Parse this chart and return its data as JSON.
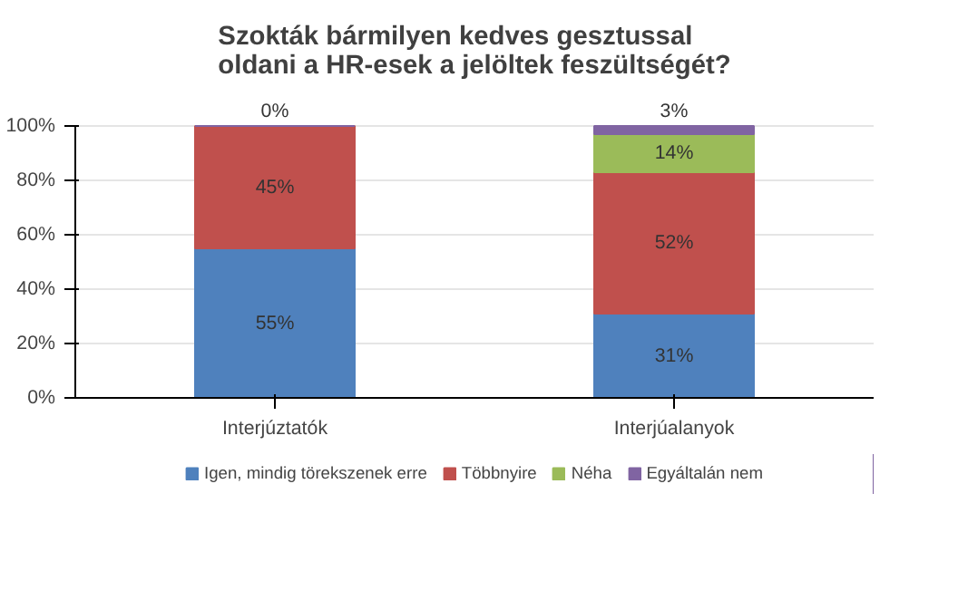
{
  "chart_data": {
    "type": "bar",
    "title": "Szokták bármilyen kedves gesztussal\noldani a HR-esek a jelöltek feszültségét?",
    "categories": [
      "Interjúztatók",
      "Interjúalanyok"
    ],
    "stacked": true,
    "ylim": [
      0,
      100
    ],
    "yticks": [
      {
        "value": 0,
        "label": "0%"
      },
      {
        "value": 20,
        "label": "20%"
      },
      {
        "value": 40,
        "label": "40%"
      },
      {
        "value": 60,
        "label": "60%"
      },
      {
        "value": 80,
        "label": "80%"
      },
      {
        "value": 100,
        "label": "100%"
      }
    ],
    "grid": "y",
    "legend": "bottom",
    "series": [
      {
        "name": "Igen, mindig törekszenek erre",
        "color": "#4f81bd",
        "values": [
          55,
          31
        ],
        "value_labels": [
          "55%",
          "31%"
        ]
      },
      {
        "name": "Többnyire",
        "color": "#c0504d",
        "values": [
          45,
          52
        ],
        "value_labels": [
          "45%",
          "52%"
        ]
      },
      {
        "name": "Néha",
        "color": "#9bbb59",
        "values": [
          0,
          14
        ],
        "value_labels": [
          "0%",
          "14%"
        ]
      },
      {
        "name": "Egyáltalán nem",
        "color": "#8064a2",
        "values": [
          0,
          3
        ],
        "value_labels": [
          null,
          "3%"
        ]
      }
    ]
  }
}
